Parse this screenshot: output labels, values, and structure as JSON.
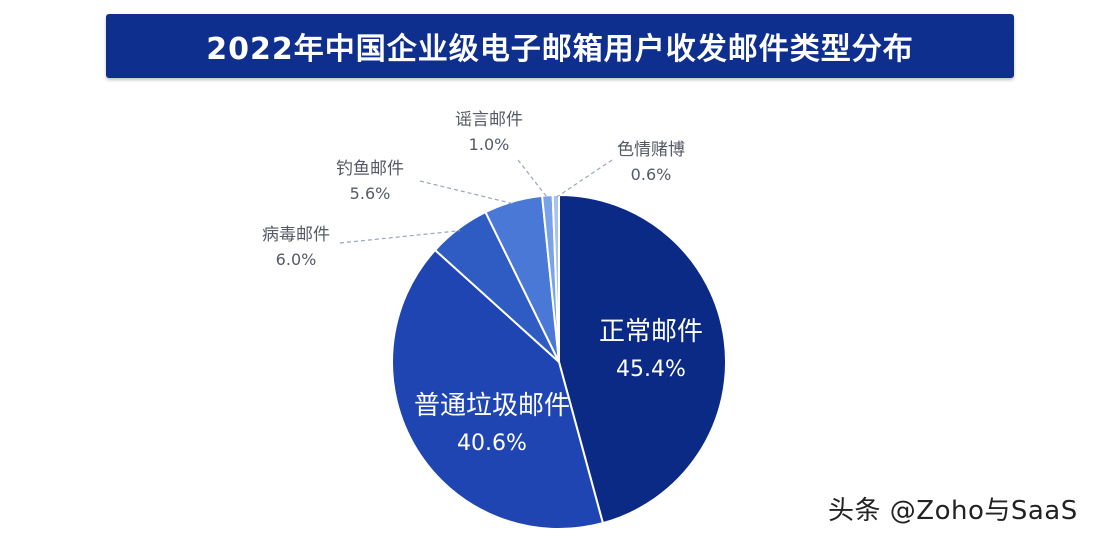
{
  "title": "2022年中国企业级电子邮箱用户收发邮件类型分布",
  "watermark": "头条 @Zoho与SaaS",
  "chart_data": {
    "type": "pie",
    "title": "2022年中国企业级电子邮箱用户收发邮件类型分布",
    "slices": [
      {
        "label": "正常邮件",
        "value": 45.4,
        "value_text": "45.4%",
        "color": "#0b2a86",
        "label_position": "inside"
      },
      {
        "label": "普通垃圾邮件",
        "value": 40.6,
        "value_text": "40.6%",
        "color": "#1f45b3",
        "label_position": "inside"
      },
      {
        "label": "病毒邮件",
        "value": 6.0,
        "value_text": "6.0%",
        "color": "#2f5cc3",
        "label_position": "outside"
      },
      {
        "label": "钓鱼邮件",
        "value": 5.6,
        "value_text": "5.6%",
        "color": "#4a78d6",
        "label_position": "outside"
      },
      {
        "label": "谣言邮件",
        "value": 1.0,
        "value_text": "1.0%",
        "color": "#7aa2ea",
        "label_position": "outside"
      },
      {
        "label": "色情赌博",
        "value": 0.6,
        "value_text": "0.6%",
        "color": "#a8c3f2",
        "label_position": "outside"
      }
    ],
    "start_angle": "12 o'clock",
    "direction": "clockwise",
    "legend": "none"
  }
}
